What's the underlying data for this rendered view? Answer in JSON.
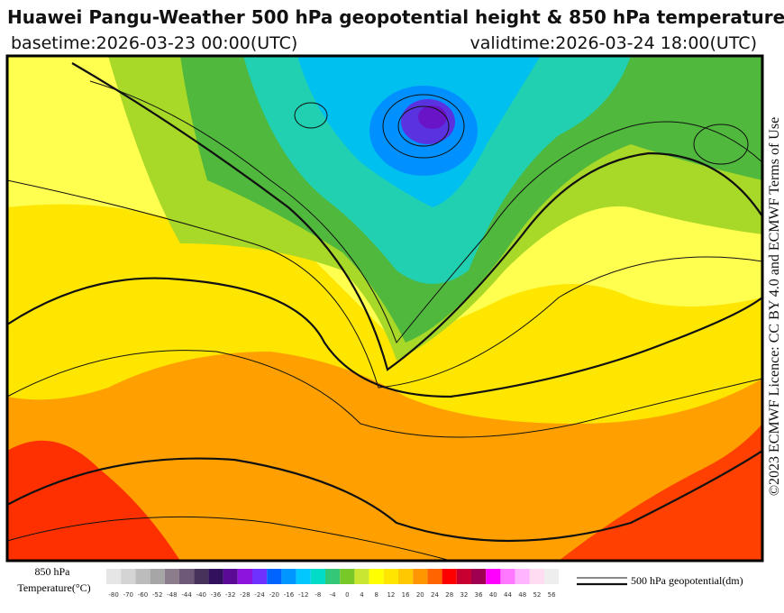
{
  "header": {
    "title": "Huawei Pangu-Weather 500 hPa geopotential height & 850 hPa temperature",
    "basetime": "basetime:2026-03-23 00:00(UTC)",
    "validtime": "validtime:2026-03-24 18:00(UTC)"
  },
  "license": "©2023 ECMWF Licence: CC BY 4.0 and ECMWF Terms of Use",
  "colorbar": {
    "title_line1": "850 hPa",
    "title_line2": "Temperature(°C)",
    "ticks": [
      -80,
      -70,
      -60,
      -52,
      -48,
      -44,
      -40,
      -36,
      -32,
      -28,
      -24,
      -20,
      -16,
      -12,
      -8,
      -4,
      0,
      4,
      8,
      12,
      16,
      20,
      24,
      28,
      32,
      36,
      40,
      44,
      48,
      52,
      56
    ],
    "colors": [
      "#e6e6e6",
      "#d4d4d4",
      "#bcbcbc",
      "#a6a6a6",
      "#8c7d8c",
      "#6e5a78",
      "#46325a",
      "#32105e",
      "#5a0a96",
      "#8c14dc",
      "#6e32ff",
      "#0064ff",
      "#0096ff",
      "#00c8ff",
      "#00dcc8",
      "#32c878",
      "#78c828",
      "#c8e632",
      "#ffff00",
      "#ffe600",
      "#ffc800",
      "#ff9600",
      "#ff6400",
      "#ff0000",
      "#c80032",
      "#a00050",
      "#ff00ff",
      "#ff78ff",
      "#ffb4ff",
      "#ffdcf0",
      "#eeeeee"
    ]
  },
  "contour_legend": "500 hPa geopotential(dm)"
}
